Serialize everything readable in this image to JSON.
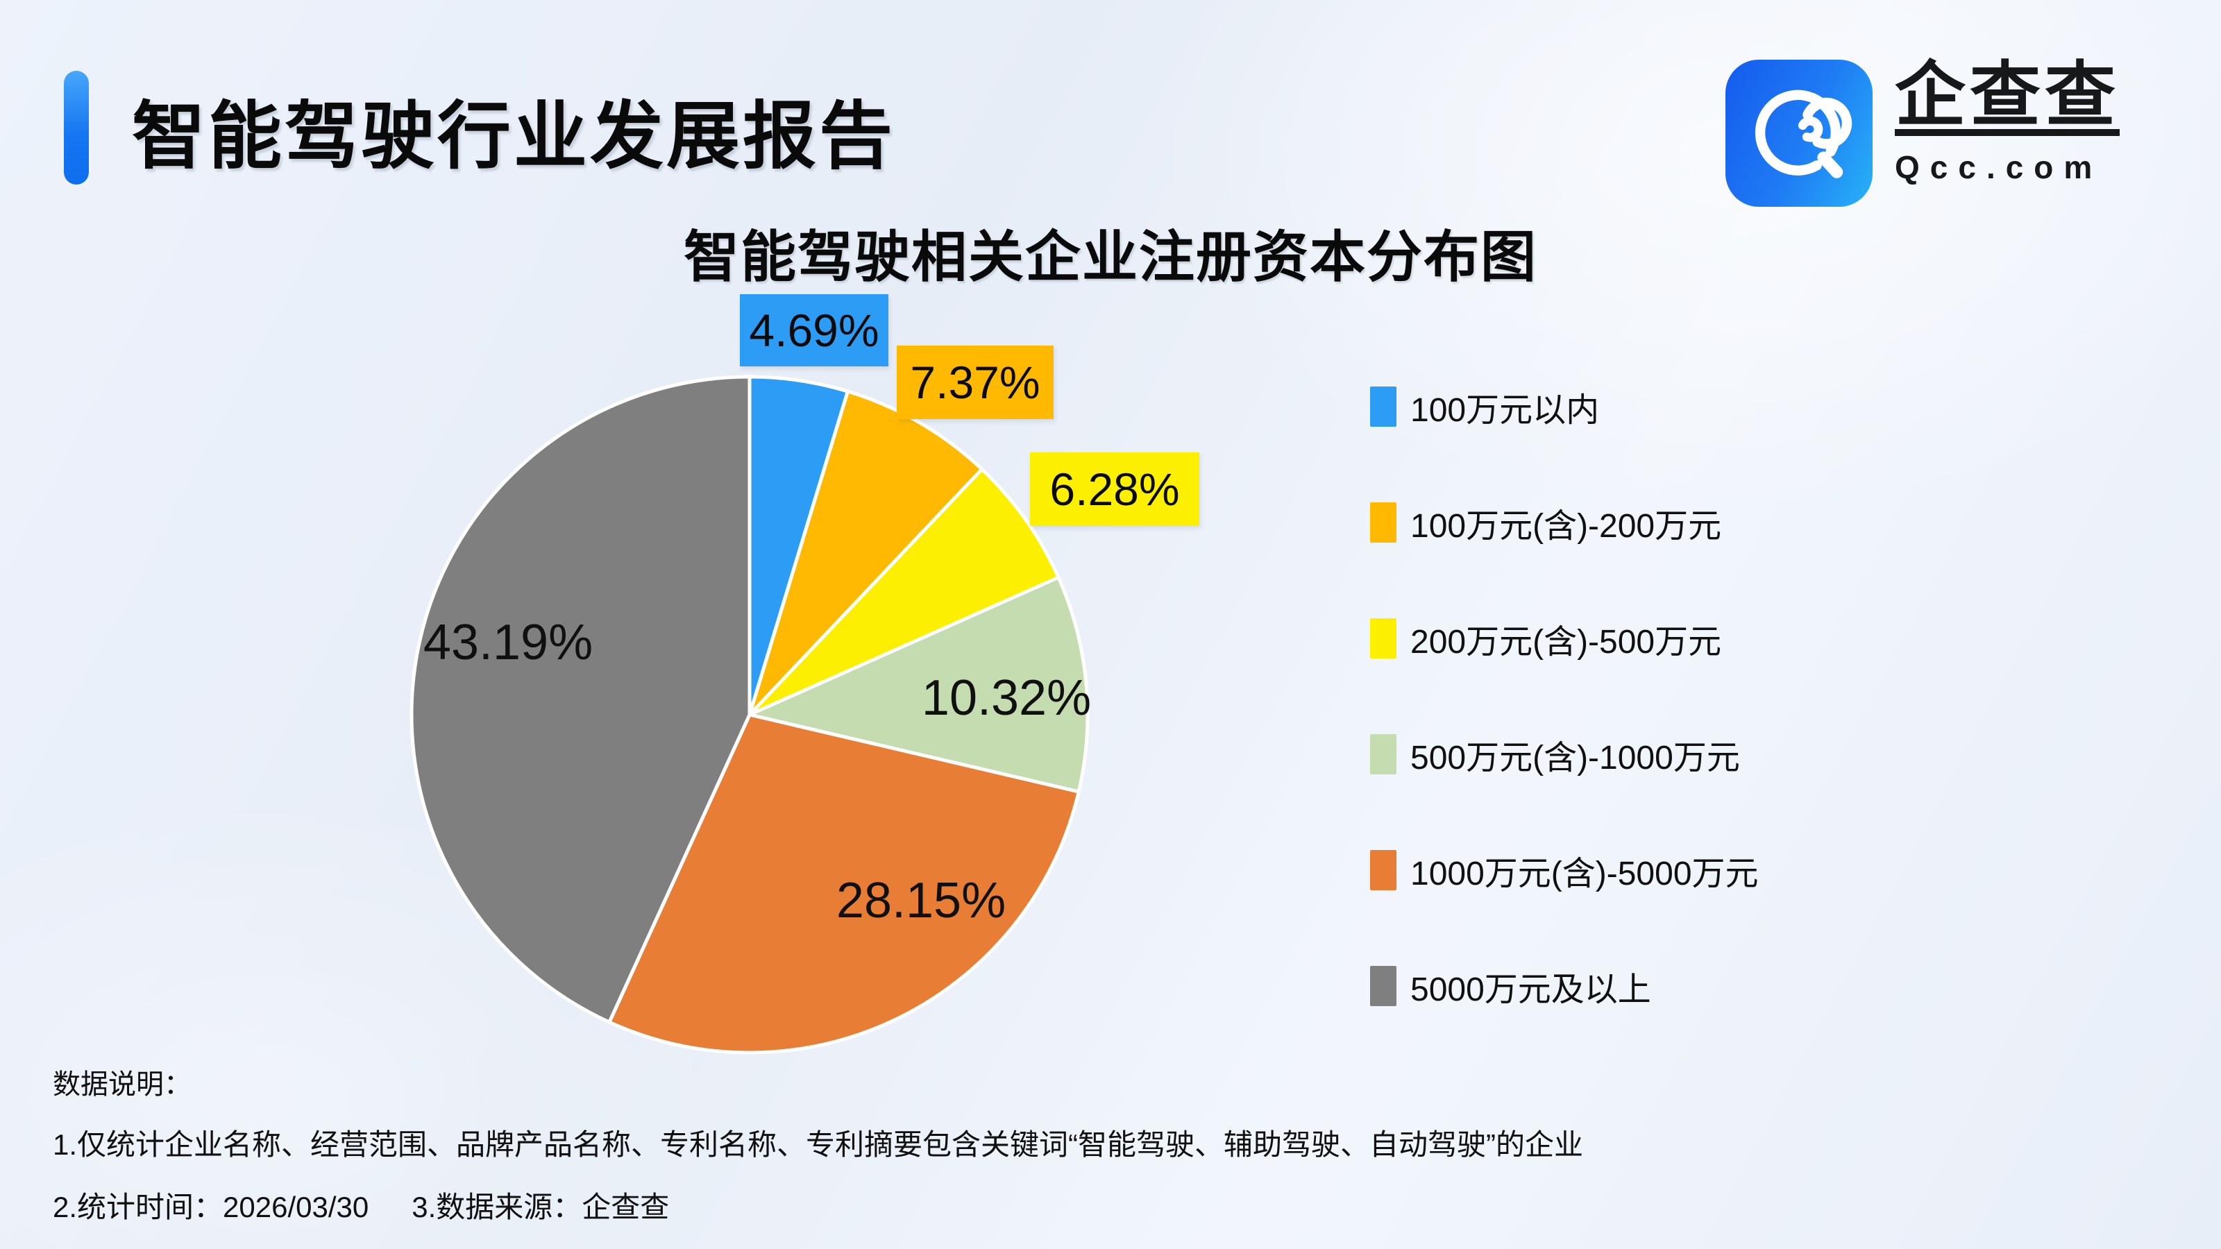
{
  "header": {
    "title": "智能驾驶行业发展报告",
    "brand": {
      "name": "企查查",
      "domain": "Qcc.com"
    }
  },
  "chart_data": {
    "type": "pie",
    "title": "智能驾驶相关企业注册资本分布图",
    "start_angle_deg": 0,
    "direction": "clockwise",
    "legend_position": "right",
    "grid": false,
    "slices": [
      {
        "label": "100万元以内",
        "value": 4.69,
        "display": "4.69%",
        "color": "#2D9CF4",
        "label_style": "boxed"
      },
      {
        "label": "100万元(含)-200万元",
        "value": 7.37,
        "display": "7.37%",
        "color": "#FFB900",
        "label_style": "boxed"
      },
      {
        "label": "200万元(含)-500万元",
        "value": 6.28,
        "display": "6.28%",
        "color": "#FCF000",
        "label_style": "boxed"
      },
      {
        "label": "500万元(含)-1000万元",
        "value": 10.32,
        "display": "10.32%",
        "color": "#C5DBB0",
        "label_style": "inside"
      },
      {
        "label": "1000万元(含)-5000万元",
        "value": 28.15,
        "display": "28.15%",
        "color": "#E87E36",
        "label_style": "inside"
      },
      {
        "label": "5000万元及以上",
        "value": 43.19,
        "display": "43.19%",
        "color": "#7F7F7F",
        "label_style": "inside"
      }
    ]
  },
  "footer": {
    "heading": "数据说明：",
    "note1": "1.仅统计企业名称、经营范围、品牌产品名称、专利名称、专利摘要包含关键词“智能驾驶、辅助驾驶、自动驾驶”的企业",
    "note2_time": "2.统计时间：2026/03/30",
    "note3_source": "3.数据来源：企查查"
  }
}
